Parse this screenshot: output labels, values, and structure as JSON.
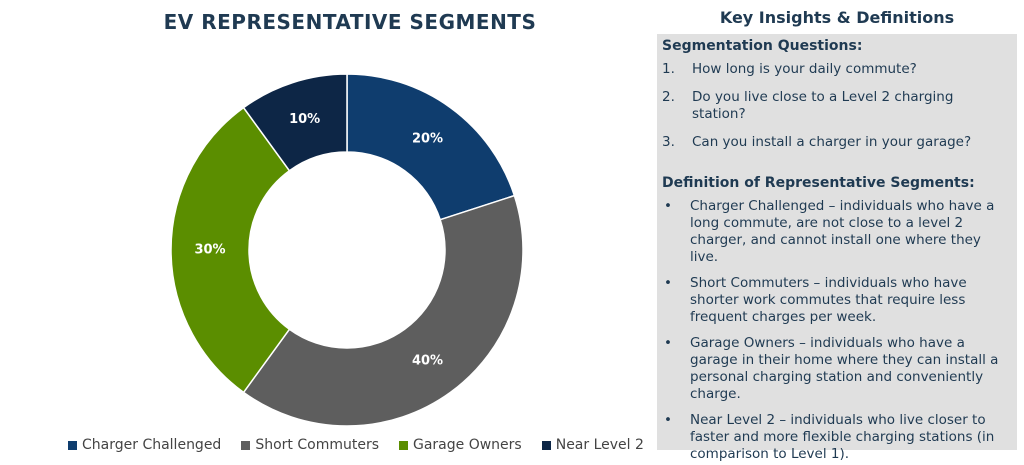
{
  "chart_data": {
    "type": "pie",
    "title": "EV REPRESENTATIVE SEGMENTS",
    "categories": [
      "Charger Challenged",
      "Short Commuters",
      "Garage Owners",
      "Near Level 2"
    ],
    "values": [
      20,
      40,
      30,
      10
    ],
    "data_labels": [
      "20%",
      "40%",
      "30%",
      "10%"
    ],
    "colors": [
      "#0f3d6e",
      "#5e5e5e",
      "#5b8e00",
      "#0d2646"
    ],
    "donut": true,
    "legend": "bottom"
  },
  "insights": {
    "heading": "Key Insights & Definitions",
    "questions_title": "Segmentation Questions:",
    "questions": [
      {
        "num": "1.",
        "text": "How long is your daily commute?"
      },
      {
        "num": "2.",
        "text": "Do you live close to a Level 2 charging station?"
      },
      {
        "num": "3.",
        "text": "Can you install a charger in your garage?"
      }
    ],
    "definitions_title": "Definition of Representative Segments:",
    "definitions": [
      {
        "bullet": "•",
        "text": "Charger Challenged – individuals who have a long commute, are not close to a level 2 charger, and cannot install one where they live."
      },
      {
        "bullet": "•",
        "text": "Short Commuters – individuals who have shorter work commutes that require less frequent charges per week."
      },
      {
        "bullet": "•",
        "text": "Garage Owners – individuals who have a garage in their home where they can install a personal charging station and conveniently charge."
      },
      {
        "bullet": "•",
        "text": "Near Level 2 – individuals who live closer to faster and more flexible charging stations (in comparison to Level 1)."
      }
    ]
  }
}
